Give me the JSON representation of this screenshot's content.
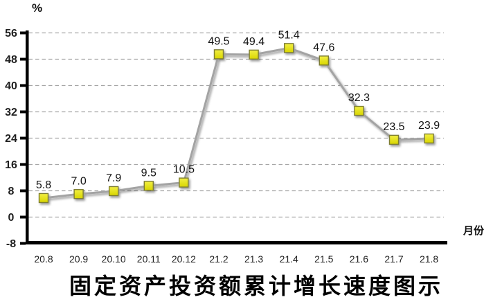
{
  "chart": {
    "y_unit_label": "%",
    "x_unit_label": "月份",
    "title": "固定资产投资额累计增长速度图示"
  },
  "chart_data": {
    "type": "line",
    "title": "固定资产投资额累计增长速度图示",
    "xlabel": "月份",
    "ylabel": "%",
    "categories": [
      "20.8",
      "20.9",
      "20.10",
      "20.11",
      "20.12",
      "21.2",
      "21.3",
      "21.4",
      "21.5",
      "21.6",
      "21.7",
      "21.8"
    ],
    "values": [
      5.8,
      7.0,
      7.9,
      9.5,
      10.5,
      49.5,
      49.4,
      51.4,
      47.6,
      32.3,
      23.5,
      23.9
    ],
    "ylim": [
      -8,
      56
    ],
    "y_ticks": [
      -8,
      0,
      8,
      16,
      24,
      32,
      40,
      48,
      56
    ],
    "grid": "horizontal-dashed",
    "legend": "none",
    "marker": "square",
    "data_labels": "above-points",
    "colors": {
      "line": "#a3a3a3",
      "marker_fill_top": "#f2ef44",
      "marker_fill_bottom": "#d8d500",
      "marker_border": "#7c7c33",
      "gridline": "#a6a6a6",
      "axis": "#000000",
      "tick_text": "#1f1f1f",
      "data_label_text": "#111111"
    }
  }
}
